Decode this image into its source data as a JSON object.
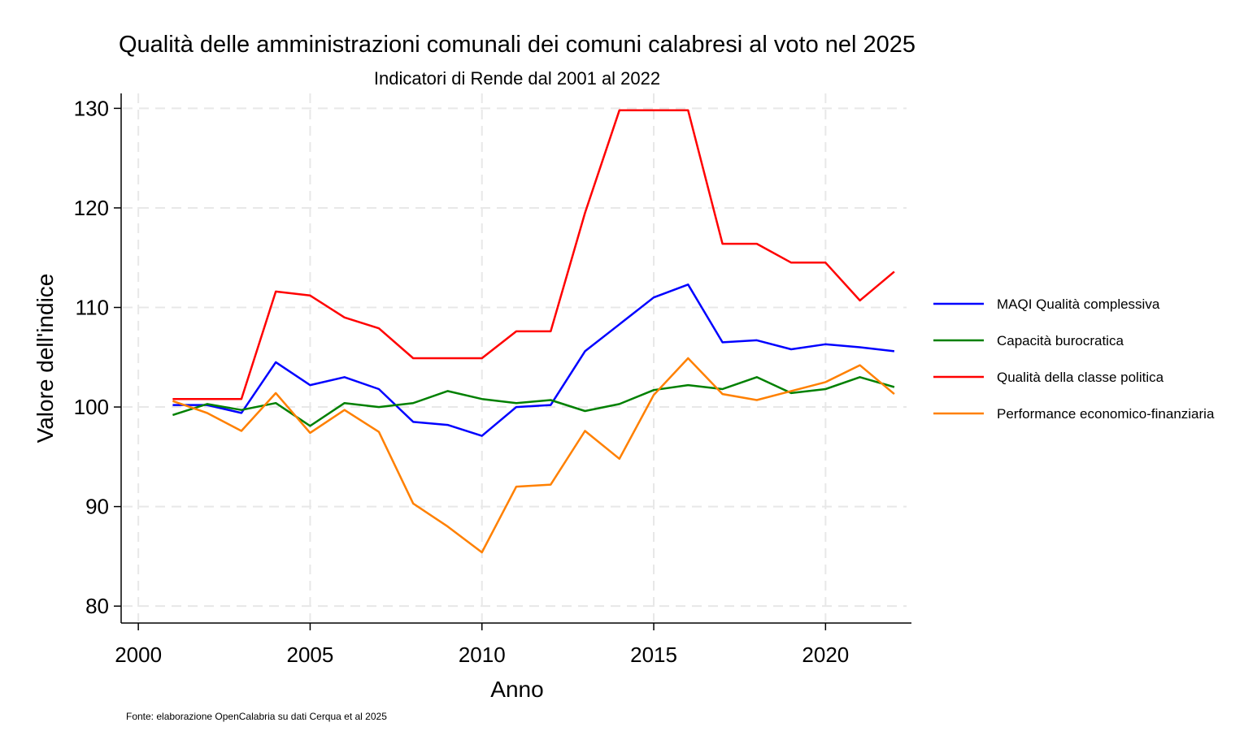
{
  "chart_data": {
    "type": "line",
    "title": "Qualità  delle amministrazioni comunali dei comuni calabresi al voto nel 2025",
    "subtitle": "Indicatori di Rende dal 2001 al 2022",
    "xlabel": "Anno",
    "ylabel": "Valore dell'indice",
    "note": "Fonte: elaborazione OpenCalabria su dati Cerqua et al 2025",
    "xlim": [
      1999.5,
      2022.5
    ],
    "ylim": [
      78.3,
      131.5
    ],
    "xticks": [
      2000,
      2005,
      2010,
      2015,
      2020
    ],
    "yticks": [
      80,
      90,
      100,
      110,
      120,
      130
    ],
    "grid": true,
    "legend_position": "right",
    "x": [
      2001,
      2002,
      2003,
      2004,
      2005,
      2006,
      2007,
      2008,
      2009,
      2010,
      2011,
      2012,
      2013,
      2014,
      2015,
      2016,
      2017,
      2018,
      2019,
      2020,
      2021,
      2022
    ],
    "series": [
      {
        "name": "MAQI Qualità  complessiva",
        "color": "#0000ff",
        "values": [
          100.2,
          100.2,
          99.4,
          104.5,
          102.2,
          103.0,
          101.8,
          98.5,
          98.2,
          97.1,
          100.0,
          100.2,
          105.6,
          108.3,
          111.0,
          112.3,
          106.5,
          106.7,
          105.8,
          106.3,
          106.0,
          105.6
        ]
      },
      {
        "name": "Capacità  burocratica",
        "color": "#008000",
        "values": [
          99.2,
          100.3,
          99.7,
          100.4,
          98.1,
          100.4,
          100.0,
          100.4,
          101.6,
          100.8,
          100.4,
          100.7,
          99.6,
          100.3,
          101.7,
          102.2,
          101.8,
          103.0,
          101.4,
          101.8,
          103.0,
          102.0
        ]
      },
      {
        "name": "Qualità  della classe politica",
        "color": "#ff0000",
        "values": [
          100.8,
          100.8,
          100.8,
          111.6,
          111.2,
          109.0,
          107.9,
          104.9,
          104.9,
          104.9,
          107.6,
          107.6,
          119.5,
          129.8,
          129.8,
          129.8,
          116.4,
          116.4,
          114.5,
          114.5,
          110.7,
          113.6
        ]
      },
      {
        "name": "Performance economico-finanziaria",
        "color": "#ff8000",
        "values": [
          100.6,
          99.4,
          97.6,
          101.4,
          97.4,
          99.7,
          97.5,
          90.3,
          88.0,
          85.4,
          92.0,
          92.2,
          97.6,
          94.8,
          101.2,
          104.9,
          101.3,
          100.7,
          101.6,
          102.5,
          104.2,
          101.3
        ]
      }
    ]
  }
}
